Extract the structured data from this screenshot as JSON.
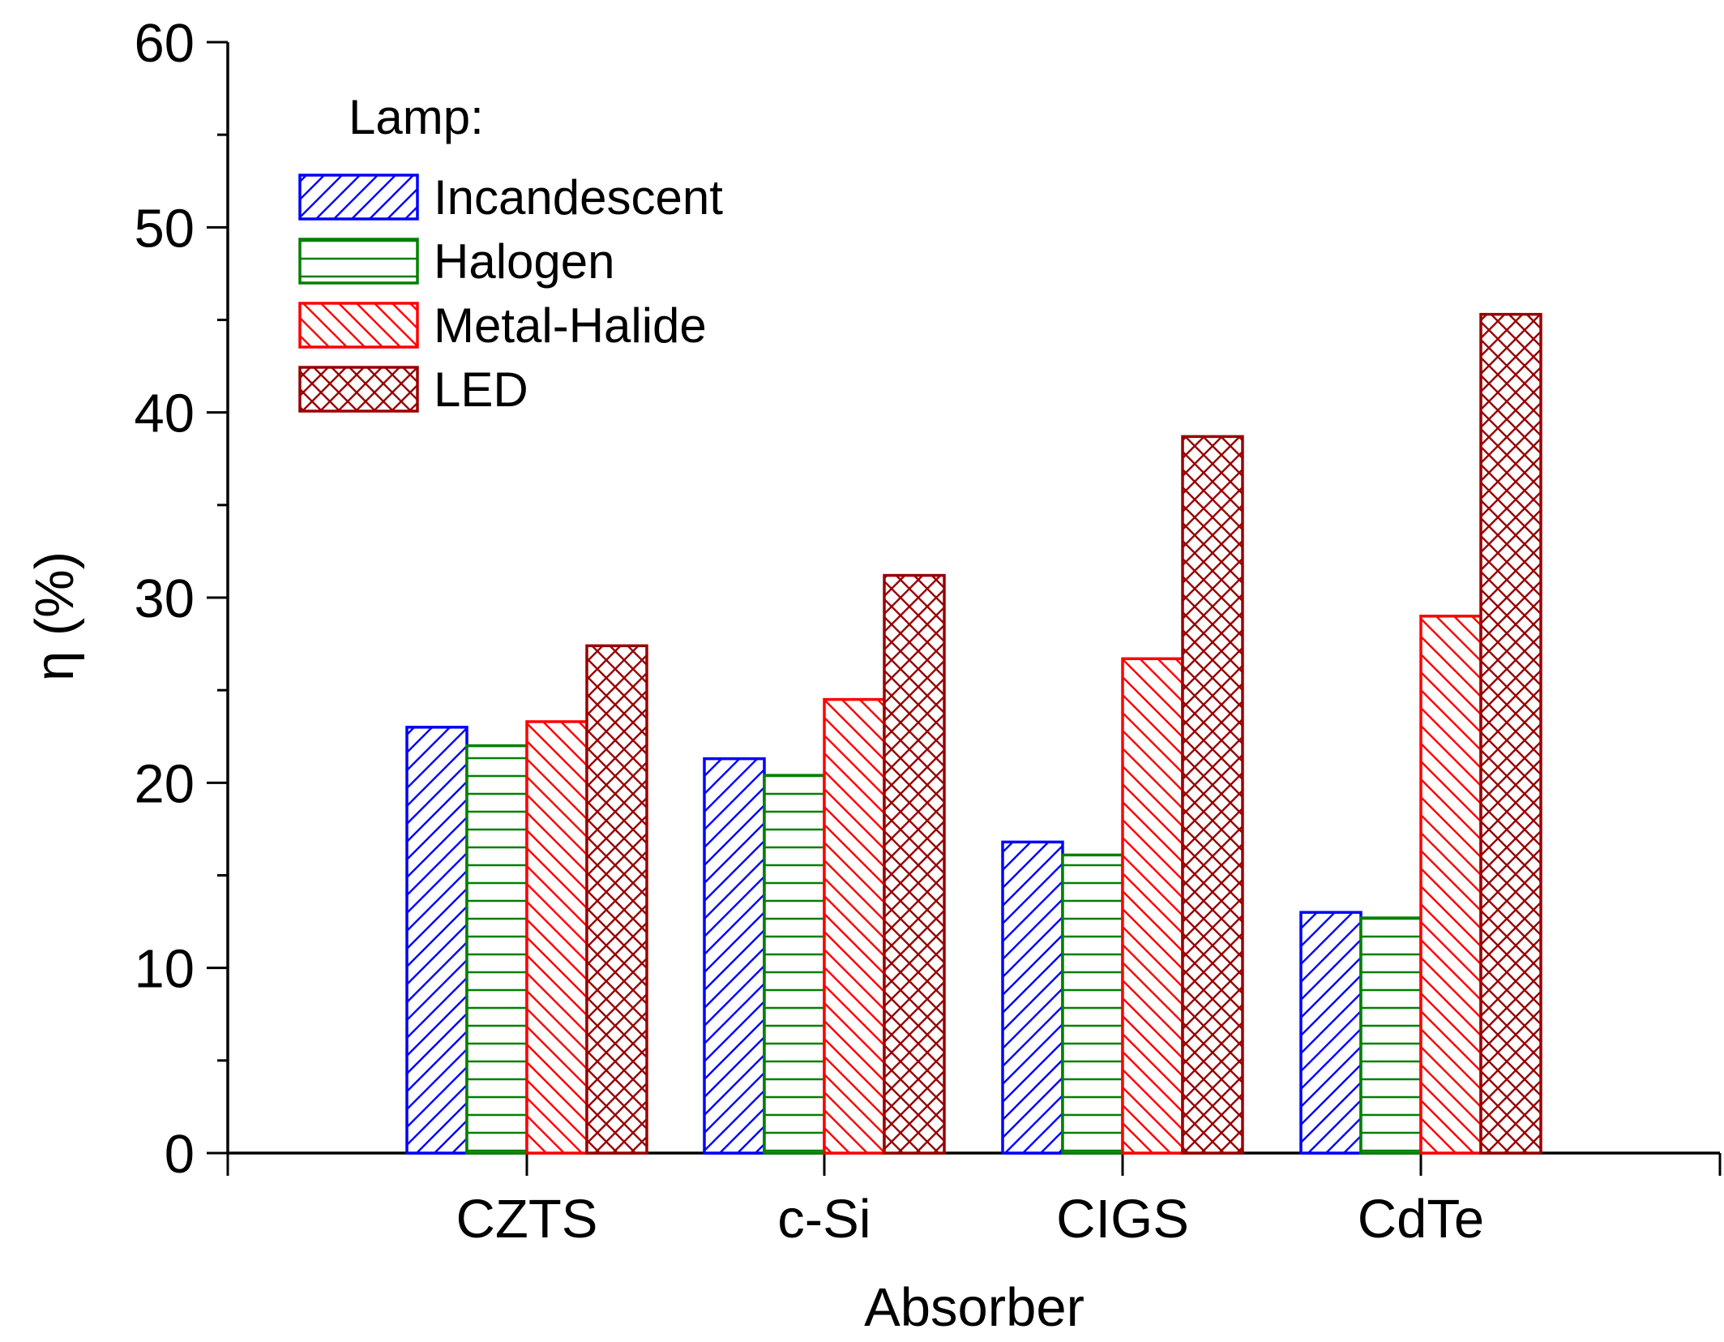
{
  "chart_data": {
    "type": "bar",
    "title": "",
    "xlabel": "Absorber",
    "ylabel": "η (%)",
    "categories": [
      "CZTS",
      "c-Si",
      "CIGS",
      "CdTe"
    ],
    "ylim": [
      0,
      60
    ],
    "yticks": [
      0,
      10,
      20,
      30,
      40,
      50,
      60
    ],
    "grid": false,
    "legend_title": "Lamp:",
    "legend_position": "top-left",
    "series": [
      {
        "name": "Incandescent",
        "color": "#0000ff",
        "hatch": "diagonal-up",
        "values": [
          23.0,
          21.3,
          16.8,
          13.0
        ]
      },
      {
        "name": "Halogen",
        "color": "#008000",
        "hatch": "horizontal",
        "values": [
          22.0,
          20.4,
          16.1,
          12.7
        ]
      },
      {
        "name": "Metal-Halide",
        "color": "#ff0000",
        "hatch": "diagonal-down",
        "values": [
          23.3,
          24.5,
          26.7,
          29.0
        ]
      },
      {
        "name": "LED",
        "color": "#990000",
        "hatch": "cross",
        "values": [
          27.4,
          31.2,
          38.7,
          45.3
        ]
      }
    ]
  }
}
